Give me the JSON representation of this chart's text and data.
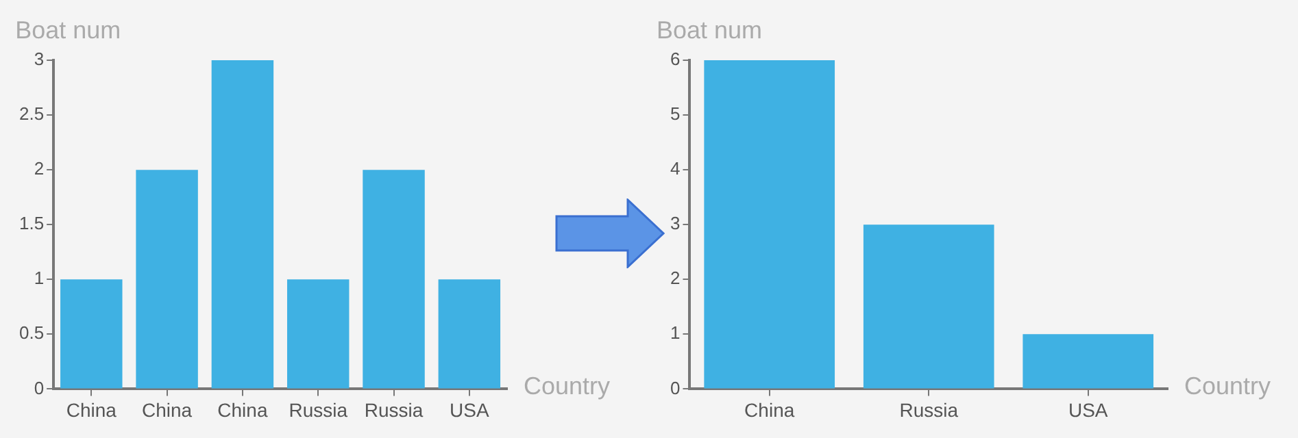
{
  "chart_data": [
    {
      "type": "bar",
      "xlabel": "Country",
      "ylabel": "Boat num",
      "categories": [
        "China",
        "China",
        "China",
        "Russia",
        "Russia",
        "USA"
      ],
      "values": [
        1,
        2,
        3,
        1,
        2,
        1
      ],
      "color": "#3fb1e3",
      "ylim": [
        0,
        3
      ],
      "yticks": [
        0,
        0.5,
        1,
        1.5,
        2,
        2.5,
        3
      ]
    },
    {
      "type": "bar",
      "xlabel": "Country",
      "ylabel": "Boat num",
      "categories": [
        "China",
        "Russia",
        "USA"
      ],
      "values": [
        6,
        3,
        1
      ],
      "color": "#3fb1e3",
      "ylim": [
        0,
        6
      ],
      "yticks": [
        0,
        1,
        2,
        3,
        4,
        5,
        6
      ]
    }
  ]
}
